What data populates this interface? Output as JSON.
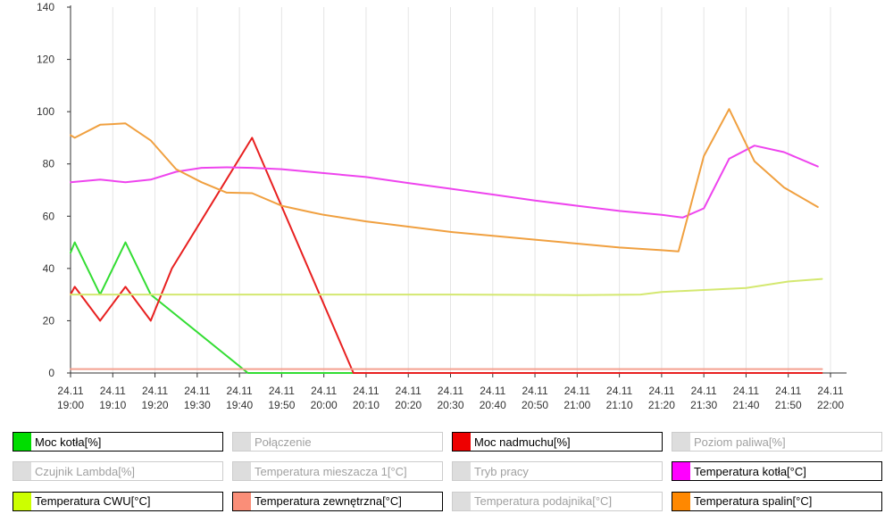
{
  "chart_data": {
    "type": "line",
    "title": "",
    "xlabel": "",
    "ylabel": "",
    "ylim": [
      0,
      140
    ],
    "yticks": [
      0,
      20,
      40,
      60,
      80,
      100,
      120,
      140
    ],
    "grid": "vertical",
    "x_ticks": [
      {
        "date": "24.11",
        "time": "19:00"
      },
      {
        "date": "24.11",
        "time": "19:10"
      },
      {
        "date": "24.11",
        "time": "19:20"
      },
      {
        "date": "24.11",
        "time": "19:30"
      },
      {
        "date": "24.11",
        "time": "19:40"
      },
      {
        "date": "24.11",
        "time": "19:50"
      },
      {
        "date": "24.11",
        "time": "20:00"
      },
      {
        "date": "24.11",
        "time": "20:10"
      },
      {
        "date": "24.11",
        "time": "20:20"
      },
      {
        "date": "24.11",
        "time": "20:30"
      },
      {
        "date": "24.11",
        "time": "20:40"
      },
      {
        "date": "24.11",
        "time": "20:50"
      },
      {
        "date": "24.11",
        "time": "21:00"
      },
      {
        "date": "24.11",
        "time": "21:10"
      },
      {
        "date": "24.11",
        "time": "21:20"
      },
      {
        "date": "24.11",
        "time": "21:30"
      },
      {
        "date": "24.11",
        "time": "21:40"
      },
      {
        "date": "24.11",
        "time": "21:50"
      },
      {
        "date": "24.11",
        "time": "22:00"
      }
    ],
    "series": [
      {
        "name": "Moc kotła[%]",
        "color": "#33dd33",
        "points": [
          [
            "19:00",
            46
          ],
          [
            "19:01",
            50
          ],
          [
            "19:07",
            30
          ],
          [
            "19:13",
            50
          ],
          [
            "19:19",
            30
          ],
          [
            "19:42",
            0
          ],
          [
            "21:58",
            0
          ]
        ]
      },
      {
        "name": "Moc nadmuchu[%]",
        "color": "#e82020",
        "points": [
          [
            "19:00",
            30
          ],
          [
            "19:01",
            33
          ],
          [
            "19:07",
            20
          ],
          [
            "19:13",
            33
          ],
          [
            "19:19",
            20
          ],
          [
            "19:24",
            40
          ],
          [
            "19:43",
            90
          ],
          [
            "20:07",
            0
          ],
          [
            "21:58",
            0
          ]
        ]
      },
      {
        "name": "Temperatura kotła[°C]",
        "color": "#ee44ee",
        "points": [
          [
            "19:00",
            73
          ],
          [
            "19:07",
            74
          ],
          [
            "19:13",
            73
          ],
          [
            "19:19",
            74
          ],
          [
            "19:25",
            77
          ],
          [
            "19:31",
            78.5
          ],
          [
            "19:37",
            78.7
          ],
          [
            "19:43",
            78.5
          ],
          [
            "19:50",
            78
          ],
          [
            "20:00",
            76.5
          ],
          [
            "20:10",
            75
          ],
          [
            "20:20",
            72.7
          ],
          [
            "20:30",
            70.5
          ],
          [
            "20:40",
            68.3
          ],
          [
            "20:50",
            66
          ],
          [
            "21:00",
            64
          ],
          [
            "21:10",
            62
          ],
          [
            "21:20",
            60.5
          ],
          [
            "21:25",
            59.5
          ],
          [
            "21:30",
            63
          ],
          [
            "21:36",
            82
          ],
          [
            "21:42",
            87
          ],
          [
            "21:49",
            84.5
          ],
          [
            "21:57",
            79
          ]
        ]
      },
      {
        "name": "Temperatura CWU[°C]",
        "color": "#d4e870",
        "points": [
          [
            "19:00",
            30
          ],
          [
            "19:30",
            30
          ],
          [
            "20:00",
            30
          ],
          [
            "20:30",
            30
          ],
          [
            "21:00",
            29.8
          ],
          [
            "21:15",
            30
          ],
          [
            "21:20",
            31
          ],
          [
            "21:40",
            32.5
          ],
          [
            "21:50",
            35
          ],
          [
            "21:58",
            36
          ]
        ]
      },
      {
        "name": "Temperatura zewnętrzna[°C]",
        "color": "#f4a090",
        "points": [
          [
            "19:00",
            1.5
          ],
          [
            "21:58",
            1.5
          ]
        ]
      },
      {
        "name": "Temperatura spalin[°C]",
        "color": "#f0a040",
        "points": [
          [
            "19:00",
            91
          ],
          [
            "19:01",
            90
          ],
          [
            "19:07",
            95
          ],
          [
            "19:13",
            95.5
          ],
          [
            "19:19",
            89
          ],
          [
            "19:25",
            78
          ],
          [
            "19:31",
            73
          ],
          [
            "19:37",
            69
          ],
          [
            "19:43",
            68.8
          ],
          [
            "19:50",
            64
          ],
          [
            "19:57",
            61.5
          ],
          [
            "20:00",
            60.5
          ],
          [
            "20:10",
            58
          ],
          [
            "20:20",
            56
          ],
          [
            "20:30",
            54
          ],
          [
            "20:40",
            52.5
          ],
          [
            "20:50",
            51
          ],
          [
            "21:00",
            49.5
          ],
          [
            "21:10",
            48
          ],
          [
            "21:20",
            47
          ],
          [
            "21:24",
            46.5
          ],
          [
            "21:30",
            83
          ],
          [
            "21:36",
            101
          ],
          [
            "21:42",
            81
          ],
          [
            "21:49",
            71
          ],
          [
            "21:57",
            63.5
          ]
        ]
      }
    ]
  },
  "legend": [
    {
      "label": "Moc kotła[%]",
      "color": "#00dd00",
      "active": true
    },
    {
      "label": "Połączenie",
      "color": "#dddddd",
      "active": false
    },
    {
      "label": "Moc nadmuchu[%]",
      "color": "#ee0000",
      "active": true
    },
    {
      "label": "Poziom paliwa[%]",
      "color": "#dddddd",
      "active": false
    },
    {
      "label": "Czujnik Lambda[%]",
      "color": "#dddddd",
      "active": false
    },
    {
      "label": "Temperatura mieszacza 1[°C]",
      "color": "#dddddd",
      "active": false
    },
    {
      "label": "Tryb pracy",
      "color": "#dddddd",
      "active": false
    },
    {
      "label": "Temperatura kotła[°C]",
      "color": "#ff00ff",
      "active": true
    },
    {
      "label": "Temperatura CWU[°C]",
      "color": "#ccff00",
      "active": true
    },
    {
      "label": "Temperatura zewnętrzna[°C]",
      "color": "#fa8e78",
      "active": true
    },
    {
      "label": "Temperatura podajnika[°C]",
      "color": "#dddddd",
      "active": false
    },
    {
      "label": "Temperatura spalin[°C]",
      "color": "#ff8800",
      "active": true
    }
  ]
}
